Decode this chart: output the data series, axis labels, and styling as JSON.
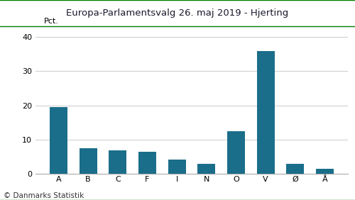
{
  "title": "Europa-Parlamentsvalg 26. maj 2019 - Hjerting",
  "categories": [
    "A",
    "B",
    "C",
    "F",
    "I",
    "N",
    "O",
    "V",
    "Ø",
    "Å"
  ],
  "values": [
    19.5,
    7.5,
    7.0,
    6.5,
    4.2,
    3.0,
    12.5,
    35.8,
    3.0,
    1.5
  ],
  "bar_color": "#1a6e8a",
  "ylabel": "Pct.",
  "ylim": [
    0,
    42
  ],
  "yticks": [
    0,
    10,
    20,
    30,
    40
  ],
  "background_color": "#ffffff",
  "title_color": "#1a1a2e",
  "grid_color": "#cccccc",
  "footer": "© Danmarks Statistik",
  "title_line_color": "#008000",
  "title_fontsize": 9.5,
  "tick_fontsize": 8,
  "ylabel_fontsize": 8,
  "footer_fontsize": 7.5
}
